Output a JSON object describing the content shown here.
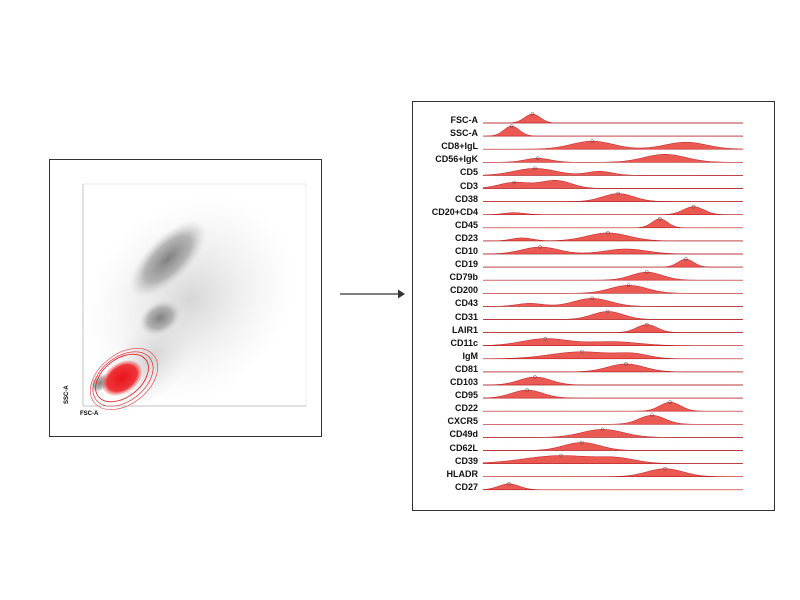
{
  "scatter": {
    "xlabel": "FSC-A",
    "ylabel": "SSC-A",
    "gate_color": "#e8141c",
    "cloud_color": "#8c8c8c"
  },
  "arrow": {
    "icon": "right-arrow-icon"
  },
  "histograms": {
    "fill_color": "#e8473f",
    "line_color": "#c2151b",
    "markers": [
      "FSC-A",
      "SSC-A",
      "CD8+IgL",
      "CD56+IgK",
      "CD5",
      "CD3",
      "CD38",
      "CD20+CD4",
      "CD45",
      "CD23",
      "CD10",
      "CD19",
      "CD79b",
      "CD200",
      "CD43",
      "CD31",
      "LAIR1",
      "CD11c",
      "IgM",
      "CD81",
      "CD103",
      "CD95",
      "CD22",
      "CXCR5",
      "CD49d",
      "CD62L",
      "CD39",
      "HLADR",
      "CD27"
    ]
  }
}
